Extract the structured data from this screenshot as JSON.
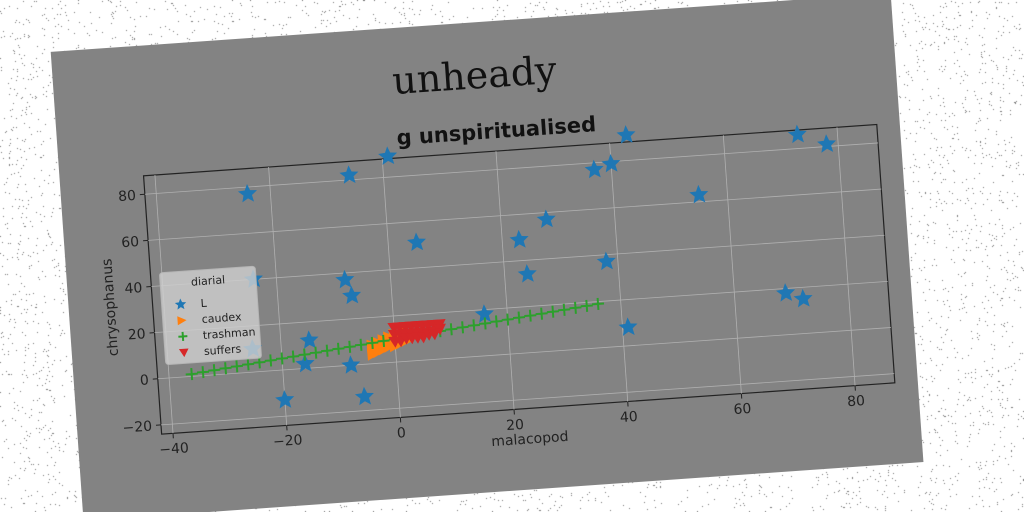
{
  "figure": {
    "suptitle": "unheady",
    "rotation_deg": -4,
    "background": "#838383",
    "noise": true
  },
  "chart_data": {
    "type": "scatter",
    "title": "g unspiritualised",
    "xlabel": "malacopod",
    "ylabel": "chrysophanus",
    "xlim": [
      -42,
      87
    ],
    "ylim": [
      -24,
      88
    ],
    "xticks": [
      -40,
      -20,
      0,
      20,
      40,
      60,
      80
    ],
    "yticks": [
      -20,
      0,
      20,
      40,
      60,
      80
    ],
    "grid": true,
    "legend": {
      "title": "diarial",
      "placement": "center-left"
    },
    "series": [
      {
        "name": "L",
        "marker": "star",
        "color": "#1f77b4",
        "points": [
          [
            -24,
            77
          ],
          [
            -24,
            40
          ],
          [
            -25,
            10
          ],
          [
            -15,
            12
          ],
          [
            -16,
            2
          ],
          [
            -8,
            37
          ],
          [
            -7,
            30
          ],
          [
            -8,
            0
          ],
          [
            -6,
            -14
          ],
          [
            -20,
            -13
          ],
          [
            -6,
            82
          ],
          [
            1,
            89
          ],
          [
            5,
            51
          ],
          [
            23,
            49
          ],
          [
            24,
            34
          ],
          [
            28,
            57
          ],
          [
            16,
            18
          ],
          [
            38,
            37
          ],
          [
            37,
            77
          ],
          [
            40,
            79
          ],
          [
            43,
            91
          ],
          [
            41,
            8
          ],
          [
            55,
            63
          ],
          [
            69,
            18
          ],
          [
            72,
            15
          ],
          [
            73,
            86
          ],
          [
            78,
            81
          ]
        ]
      },
      {
        "name": "caudex",
        "marker": "triangle-right",
        "color": "#ff7f0e",
        "points": [
          [
            -4,
            6
          ],
          [
            -3,
            7
          ],
          [
            -2,
            8
          ],
          [
            -1,
            9
          ],
          [
            0,
            10
          ],
          [
            1,
            11
          ],
          [
            2,
            11
          ],
          [
            3,
            12
          ],
          [
            -4,
            4
          ],
          [
            -3,
            5
          ],
          [
            -2,
            6
          ],
          [
            -1,
            7
          ],
          [
            0,
            7
          ],
          [
            1,
            8
          ],
          [
            2,
            9
          ],
          [
            3,
            10
          ],
          [
            -4,
            8
          ],
          [
            -3,
            9
          ],
          [
            -2,
            10
          ],
          [
            -1,
            11
          ],
          [
            0,
            12
          ],
          [
            1,
            12
          ],
          [
            2,
            13
          ]
        ]
      },
      {
        "name": "trashman",
        "marker": "plus",
        "color": "#2ca02c",
        "points": [
          [
            -36,
            1
          ],
          [
            -34,
            1.5
          ],
          [
            -32,
            2
          ],
          [
            -30,
            2.5
          ],
          [
            -28,
            3
          ],
          [
            -26,
            3.5
          ],
          [
            -24,
            4
          ],
          [
            -22,
            4.5
          ],
          [
            -20,
            5
          ],
          [
            -18,
            5.5
          ],
          [
            -16,
            6
          ],
          [
            -14,
            6.5
          ],
          [
            -12,
            7
          ],
          [
            -10,
            7.5
          ],
          [
            -8,
            8
          ],
          [
            -6,
            8.5
          ],
          [
            -4,
            9
          ],
          [
            -2,
            9.5
          ],
          [
            0,
            10
          ],
          [
            2,
            10.5
          ],
          [
            4,
            11
          ],
          [
            6,
            11.5
          ],
          [
            8,
            12
          ],
          [
            10,
            12.5
          ],
          [
            12,
            13
          ],
          [
            14,
            13.5
          ],
          [
            16,
            14
          ],
          [
            18,
            14.5
          ],
          [
            20,
            15
          ],
          [
            22,
            15.5
          ],
          [
            24,
            16
          ],
          [
            26,
            16.5
          ],
          [
            28,
            17
          ],
          [
            30,
            17.5
          ],
          [
            32,
            18
          ],
          [
            34,
            18.5
          ],
          [
            36,
            19
          ]
        ]
      },
      {
        "name": "suffers",
        "marker": "triangle-down",
        "color": "#d62728",
        "points": [
          [
            0,
            15
          ],
          [
            1,
            15
          ],
          [
            2,
            15
          ],
          [
            3,
            15
          ],
          [
            4,
            15
          ],
          [
            5,
            15
          ],
          [
            6,
            15
          ],
          [
            7,
            15
          ],
          [
            8,
            15
          ],
          [
            0,
            12
          ],
          [
            1,
            12
          ],
          [
            2,
            12
          ],
          [
            3,
            12
          ],
          [
            4,
            12
          ],
          [
            5,
            12
          ],
          [
            6,
            12
          ],
          [
            7,
            12
          ],
          [
            8,
            13
          ],
          [
            0,
            9
          ],
          [
            1,
            9
          ],
          [
            2,
            10
          ],
          [
            3,
            10
          ],
          [
            4,
            10
          ],
          [
            5,
            10
          ],
          [
            6,
            11
          ],
          [
            7,
            11
          ]
        ]
      }
    ]
  }
}
